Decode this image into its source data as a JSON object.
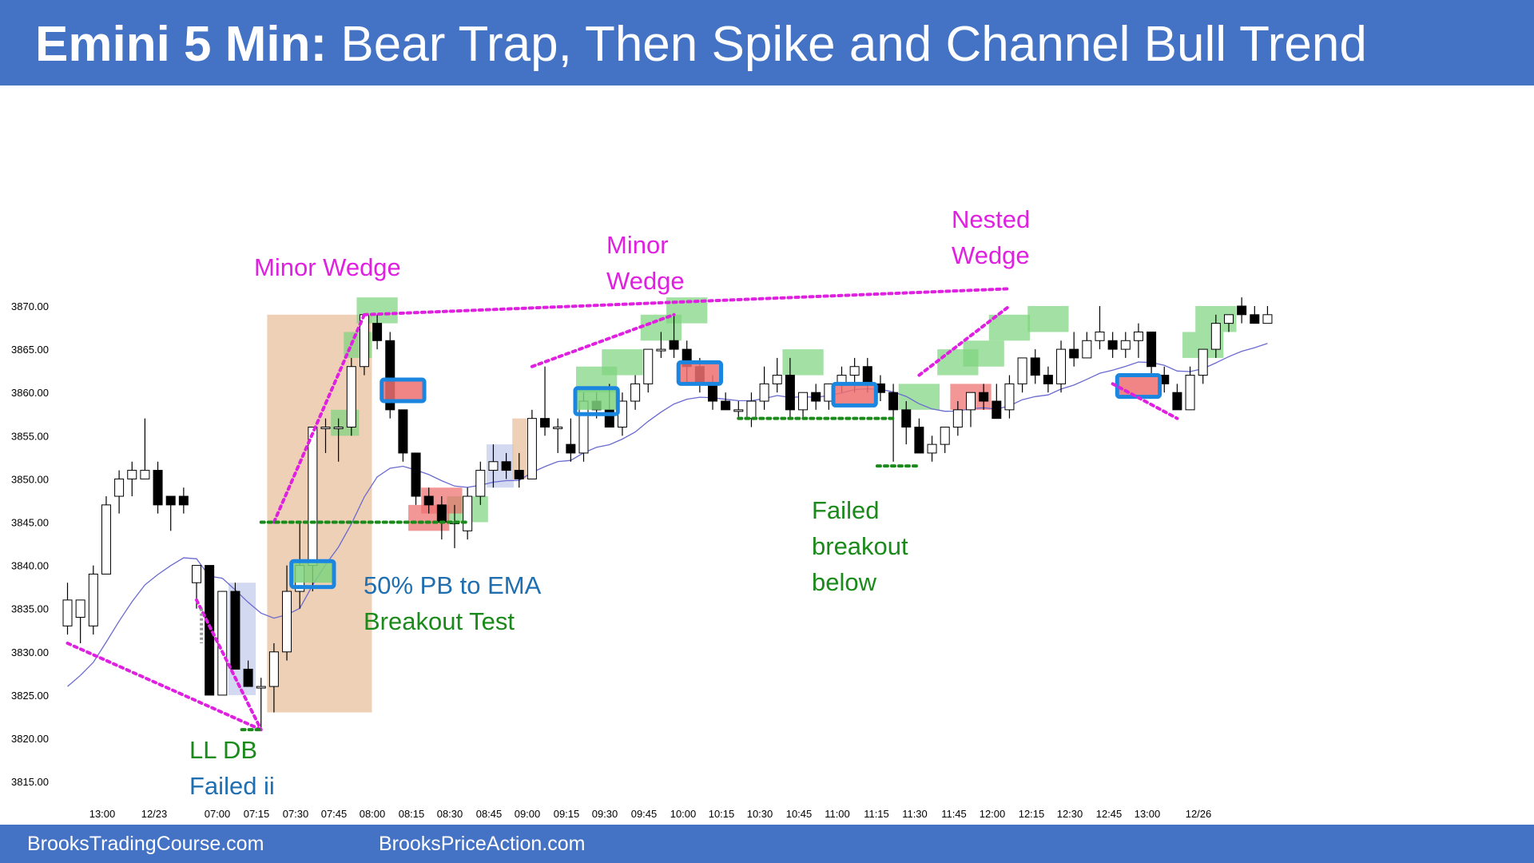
{
  "header": {
    "title_bold": "Emini 5 Min:",
    "title_rest": "Bear Trap, Then Spike and Channel Bull Trend",
    "bg_color": "#4472c4"
  },
  "footer": {
    "left_text": "BrooksTradingCourse.com",
    "right_text": "BrooksPriceAction.com"
  },
  "colors": {
    "annotation_magenta": "#e020e0",
    "annotation_green": "#1a8a1a",
    "annotation_blue": "#1f6fb0",
    "ema_line": "#6a6ad0",
    "bull_highlight": "#7fd47f",
    "bear_highlight": "#ee6e6e",
    "signal_outline": "#1a86e0",
    "spike_zone": "#e8c4a4",
    "pullback_zone": "#c8d0ec"
  },
  "annotations": [
    {
      "id": "minor-wedge-1",
      "lines": [
        "Minor Wedge"
      ],
      "color": "#e020e0"
    },
    {
      "id": "minor-wedge-2",
      "lines": [
        "Minor",
        "Wedge"
      ],
      "color": "#e020e0"
    },
    {
      "id": "nested-wedge",
      "lines": [
        "Nested",
        "Wedge"
      ],
      "color": "#e020e0"
    },
    {
      "id": "pb-to-ema",
      "lines": [
        "50% PB to EMA"
      ],
      "color": "#1f6fb0"
    },
    {
      "id": "breakout-test",
      "lines": [
        "Breakout Test"
      ],
      "color": "#1a8a1a"
    },
    {
      "id": "failed-breakout",
      "lines": [
        "Failed",
        "breakout",
        "below"
      ],
      "color": "#1a8a1a"
    },
    {
      "id": "ll-db",
      "lines": [
        "LL DB"
      ],
      "color": "#1a8a1a"
    },
    {
      "id": "failed-ii",
      "lines": [
        "Failed ii"
      ],
      "color": "#1f6fb0"
    }
  ],
  "chart_data": {
    "type": "candlestick",
    "ylim": [
      3815,
      3870
    ],
    "y_ticks": [
      "3815.00",
      "3820.00",
      "3825.00",
      "3830.00",
      "3835.00",
      "3840.00",
      "3845.00",
      "3850.00",
      "3855.00",
      "3860.00",
      "3865.00",
      "3870.00"
    ],
    "x_ticks": [
      "13:00",
      "12/23",
      "07:00",
      "07:15",
      "07:30",
      "07:45",
      "08:00",
      "08:15",
      "08:30",
      "08:45",
      "09:00",
      "09:15",
      "09:30",
      "09:45",
      "10:00",
      "10:15",
      "10:30",
      "10:45",
      "11:00",
      "11:15",
      "11:30",
      "11:45",
      "12:00",
      "12:15",
      "12:30",
      "12:45",
      "13:00",
      "12/26"
    ],
    "candles": [
      {
        "o": 3833,
        "h": 3838,
        "l": 3832,
        "c": 3836
      },
      {
        "o": 3834,
        "h": 3836,
        "l": 3831,
        "c": 3836
      },
      {
        "o": 3833,
        "h": 3840,
        "l": 3832,
        "c": 3839
      },
      {
        "o": 3839,
        "h": 3848,
        "l": 3839,
        "c": 3847
      },
      {
        "o": 3848,
        "h": 3851,
        "l": 3846,
        "c": 3850
      },
      {
        "o": 3850,
        "h": 3852,
        "l": 3848,
        "c": 3851
      },
      {
        "o": 3850,
        "h": 3857,
        "l": 3850,
        "c": 3851
      },
      {
        "o": 3851,
        "h": 3852,
        "l": 3846,
        "c": 3847
      },
      {
        "o": 3848,
        "h": 3848,
        "l": 3844,
        "c": 3847
      },
      {
        "o": 3848,
        "h": 3849,
        "l": 3846,
        "c": 3847
      },
      {
        "o": 3838,
        "h": 3840,
        "l": 3835,
        "c": 3840
      },
      {
        "o": 3840,
        "h": 3840,
        "l": 3825,
        "c": 3825
      },
      {
        "o": 3825,
        "h": 3837,
        "l": 3825,
        "c": 3837
      },
      {
        "o": 3837,
        "h": 3838,
        "l": 3828,
        "c": 3828
      },
      {
        "o": 3828,
        "h": 3829,
        "l": 3826,
        "c": 3826
      },
      {
        "o": 3826,
        "h": 3827,
        "l": 3821,
        "c": 3826
      },
      {
        "o": 3826,
        "h": 3831,
        "l": 3823,
        "c": 3830
      },
      {
        "o": 3830,
        "h": 3840,
        "l": 3829,
        "c": 3837
      },
      {
        "o": 3837,
        "h": 3845,
        "l": 3835,
        "c": 3840
      },
      {
        "o": 3840,
        "h": 3856,
        "l": 3837,
        "c": 3856
      },
      {
        "o": 3856,
        "h": 3857,
        "l": 3853,
        "c": 3856
      },
      {
        "o": 3856,
        "h": 3857,
        "l": 3852,
        "c": 3856
      },
      {
        "o": 3856,
        "h": 3864,
        "l": 3855,
        "c": 3863
      },
      {
        "o": 3863,
        "h": 3869,
        "l": 3862,
        "c": 3869
      },
      {
        "o": 3868,
        "h": 3869,
        "l": 3865,
        "c": 3866
      },
      {
        "o": 3866,
        "h": 3867,
        "l": 3857,
        "c": 3858
      },
      {
        "o": 3858,
        "h": 3858,
        "l": 3852,
        "c": 3853
      },
      {
        "o": 3853,
        "h": 3853,
        "l": 3847,
        "c": 3848
      },
      {
        "o": 3848,
        "h": 3849,
        "l": 3846,
        "c": 3847
      },
      {
        "o": 3847,
        "h": 3848,
        "l": 3843,
        "c": 3845
      },
      {
        "o": 3845,
        "h": 3847,
        "l": 3842,
        "c": 3845
      },
      {
        "o": 3844,
        "h": 3849,
        "l": 3843,
        "c": 3848
      },
      {
        "o": 3848,
        "h": 3852,
        "l": 3847,
        "c": 3851
      },
      {
        "o": 3851,
        "h": 3854,
        "l": 3849,
        "c": 3852
      },
      {
        "o": 3852,
        "h": 3853,
        "l": 3850,
        "c": 3851
      },
      {
        "o": 3851,
        "h": 3853,
        "l": 3849,
        "c": 3850
      },
      {
        "o": 3850,
        "h": 3858,
        "l": 3850,
        "c": 3857
      },
      {
        "o": 3857,
        "h": 3863,
        "l": 3855,
        "c": 3856
      },
      {
        "o": 3856,
        "h": 3857,
        "l": 3853,
        "c": 3856
      },
      {
        "o": 3854,
        "h": 3857,
        "l": 3852,
        "c": 3853
      },
      {
        "o": 3853,
        "h": 3860,
        "l": 3852,
        "c": 3859
      },
      {
        "o": 3859,
        "h": 3860,
        "l": 3857,
        "c": 3858
      },
      {
        "o": 3858,
        "h": 3861,
        "l": 3856,
        "c": 3856
      },
      {
        "o": 3856,
        "h": 3860,
        "l": 3855,
        "c": 3859
      },
      {
        "o": 3859,
        "h": 3862,
        "l": 3858,
        "c": 3861
      },
      {
        "o": 3861,
        "h": 3865,
        "l": 3860,
        "c": 3865
      },
      {
        "o": 3865,
        "h": 3867,
        "l": 3864,
        "c": 3865
      },
      {
        "o": 3866,
        "h": 3869,
        "l": 3864,
        "c": 3865
      },
      {
        "o": 3865,
        "h": 3866,
        "l": 3861,
        "c": 3863
      },
      {
        "o": 3863,
        "h": 3864,
        "l": 3860,
        "c": 3861
      },
      {
        "o": 3861,
        "h": 3862,
        "l": 3858,
        "c": 3859
      },
      {
        "o": 3859,
        "h": 3860,
        "l": 3858,
        "c": 3858
      },
      {
        "o": 3858,
        "h": 3859,
        "l": 3857,
        "c": 3858
      },
      {
        "o": 3857,
        "h": 3860,
        "l": 3856,
        "c": 3859
      },
      {
        "o": 3859,
        "h": 3863,
        "l": 3858,
        "c": 3861
      },
      {
        "o": 3861,
        "h": 3864,
        "l": 3860,
        "c": 3862
      },
      {
        "o": 3862,
        "h": 3864,
        "l": 3857,
        "c": 3858
      },
      {
        "o": 3858,
        "h": 3860,
        "l": 3857,
        "c": 3860
      },
      {
        "o": 3860,
        "h": 3861,
        "l": 3858,
        "c": 3859
      },
      {
        "o": 3859,
        "h": 3861,
        "l": 3858,
        "c": 3861
      },
      {
        "o": 3861,
        "h": 3863,
        "l": 3860,
        "c": 3862
      },
      {
        "o": 3862,
        "h": 3864,
        "l": 3860,
        "c": 3863
      },
      {
        "o": 3863,
        "h": 3864,
        "l": 3860,
        "c": 3861
      },
      {
        "o": 3861,
        "h": 3862,
        "l": 3859,
        "c": 3860
      },
      {
        "o": 3860,
        "h": 3861,
        "l": 3852,
        "c": 3858
      },
      {
        "o": 3858,
        "h": 3859,
        "l": 3854,
        "c": 3856
      },
      {
        "o": 3856,
        "h": 3857,
        "l": 3853,
        "c": 3853
      },
      {
        "o": 3853,
        "h": 3855,
        "l": 3852,
        "c": 3854
      },
      {
        "o": 3854,
        "h": 3856,
        "l": 3853,
        "c": 3856
      },
      {
        "o": 3856,
        "h": 3859,
        "l": 3855,
        "c": 3858
      },
      {
        "o": 3858,
        "h": 3860,
        "l": 3856,
        "c": 3860
      },
      {
        "o": 3860,
        "h": 3861,
        "l": 3858,
        "c": 3859
      },
      {
        "o": 3859,
        "h": 3861,
        "l": 3857,
        "c": 3857
      },
      {
        "o": 3858,
        "h": 3862,
        "l": 3857,
        "c": 3861
      },
      {
        "o": 3861,
        "h": 3864,
        "l": 3860,
        "c": 3864
      },
      {
        "o": 3864,
        "h": 3865,
        "l": 3861,
        "c": 3862
      },
      {
        "o": 3862,
        "h": 3863,
        "l": 3860,
        "c": 3861
      },
      {
        "o": 3861,
        "h": 3866,
        "l": 3860,
        "c": 3865
      },
      {
        "o": 3865,
        "h": 3867,
        "l": 3863,
        "c": 3864
      },
      {
        "o": 3864,
        "h": 3867,
        "l": 3864,
        "c": 3866
      },
      {
        "o": 3866,
        "h": 3870,
        "l": 3865,
        "c": 3867
      },
      {
        "o": 3866,
        "h": 3867,
        "l": 3864,
        "c": 3865
      },
      {
        "o": 3865,
        "h": 3867,
        "l": 3864,
        "c": 3866
      },
      {
        "o": 3866,
        "h": 3868,
        "l": 3864,
        "c": 3867
      },
      {
        "o": 3867,
        "h": 3867,
        "l": 3862,
        "c": 3863
      },
      {
        "o": 3862,
        "h": 3863,
        "l": 3860,
        "c": 3861
      },
      {
        "o": 3860,
        "h": 3861,
        "l": 3858,
        "c": 3858
      },
      {
        "o": 3858,
        "h": 3863,
        "l": 3858,
        "c": 3862
      },
      {
        "o": 3862,
        "h": 3865,
        "l": 3861,
        "c": 3865
      },
      {
        "o": 3865,
        "h": 3869,
        "l": 3864,
        "c": 3868
      },
      {
        "o": 3868,
        "h": 3869,
        "l": 3867,
        "c": 3869
      },
      {
        "o": 3870,
        "h": 3871,
        "l": 3868,
        "c": 3869
      },
      {
        "o": 3869,
        "h": 3870,
        "l": 3868,
        "c": 3868
      },
      {
        "o": 3868,
        "h": 3870,
        "l": 3868,
        "c": 3869
      }
    ]
  }
}
